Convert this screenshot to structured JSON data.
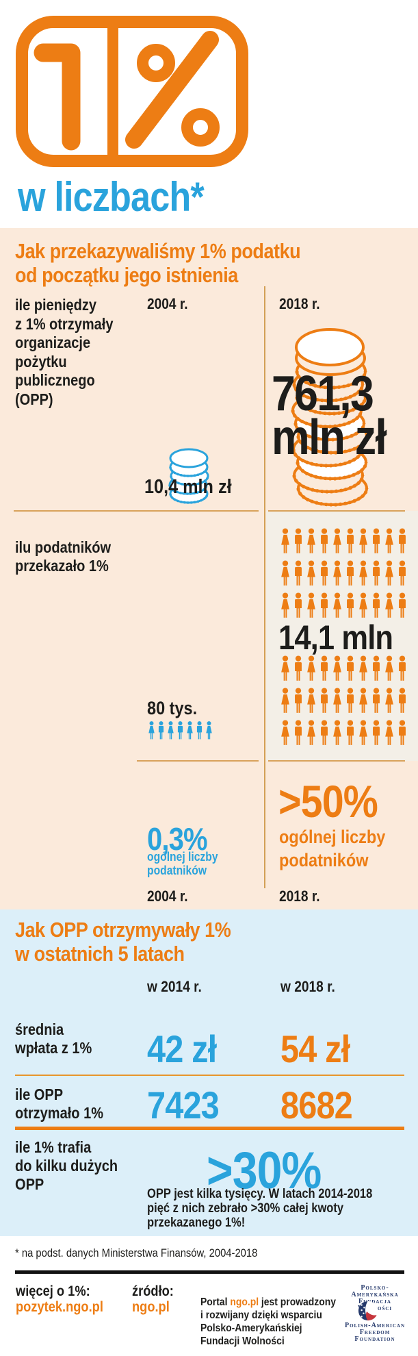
{
  "header": {
    "logo_one": "1",
    "logo_percent": "%",
    "title": "w liczbach*"
  },
  "section1": {
    "heading": "Jak przekazywaliśmy 1% podatku\nod początku jego istnienia",
    "col_2004": "2004 r.",
    "col_2018": "2018 r.",
    "money_label": "ile pieniędzy\nz 1% otrzymały\norganizacje\npożytku\npublicznego\n(OPP)",
    "money_2004": "10,4 mln zł",
    "money_2018": "761,3\nmln zł",
    "people_label": "ilu podatników\nprzekazało 1%",
    "people_2004": "80 tys.",
    "people_2018": "14,1 mln",
    "people_per_row": 10,
    "people_2004_count": 7,
    "share_2004": "0,3%",
    "share_caption_2004": "ogólnej liczby\npodatników",
    "share_year_2004": "2004 r.",
    "share_2018": ">50%",
    "share_caption_2018": "ogólnej liczby\npodatników",
    "share_year_2018": "2018 r."
  },
  "section2": {
    "heading": "Jak OPP otrzymywały 1%\nw ostatnich 5 latach",
    "col_2014": "w 2014 r.",
    "col_2018": "w 2018 r.",
    "avg_label": "średnia\nwpłata z 1%",
    "avg_2014": "42 zł",
    "avg_2018": "54 zł",
    "count_label": "ile OPP\notrzymało 1%",
    "count_2014": "7423",
    "count_2018": "8682",
    "big_label": "ile 1% trafia\ndo kilku dużych\nOPP",
    "big_value": ">30%",
    "note": "OPP jest kilka tysięcy. W latach 2014-2018\npięć z nich zebrało >30% całej kwoty\nprzekazanego 1%!"
  },
  "footer": {
    "footnote": "* na podst. danych Ministerstwa Finansów, 2004-2018",
    "more_label": "więcej o 1%:",
    "more_link": "pozytek.ngo.pl",
    "source_label": "źródło:",
    "source_link": "ngo.pl",
    "credit_pre": "Portal ",
    "credit_link": "ngo.pl",
    "credit_post": " jest prowadzony",
    "credit_rest": "i rozwijany dzięki wsparciu\nPolsko-Amerykańskiej\nFundacji Wolności",
    "pafw_pl": "Polsko-Amerykańska\nFundacja Wolności",
    "pafw_en": "Polish-American\nFreedom Foundation"
  },
  "colors": {
    "orange": "#ED7D14",
    "blue": "#2AA3DC",
    "cream_bg": "#FBEADB",
    "light_panel": "#F3EFE7",
    "lightblue_bg": "#DCEFF9",
    "navy": "#25396B",
    "flag_red": "#C6353C",
    "text_black": "#1d1d1b"
  },
  "chart_data": [
    {
      "type": "table",
      "title": "Jak przekazywaliśmy 1% podatku od początku jego istnienia",
      "columns": [
        "2004 r.",
        "2018 r."
      ],
      "rows": [
        {
          "label": "ile pieniędzy z 1% otrzymały organizacje pożytku publicznego (OPP)",
          "values": [
            "10,4 mln zł",
            "761,3 mln zł"
          ]
        },
        {
          "label": "ilu podatników przekazało 1%",
          "values": [
            "80 tys.",
            "14,1 mln"
          ]
        },
        {
          "label": "odsetek ogólnej liczby podatników",
          "values": [
            "0,3%",
            ">50%"
          ]
        }
      ],
      "pictograms": {
        "money": "coin-stacks",
        "people_2004_icons": 7,
        "people_2018_icons": 60
      }
    },
    {
      "type": "table",
      "title": "Jak OPP otrzymywały 1% w ostatnich 5 latach",
      "columns": [
        "w 2014 r.",
        "w 2018 r."
      ],
      "rows": [
        {
          "label": "średnia wpłata z 1%",
          "values": [
            "42 zł",
            "54 zł"
          ]
        },
        {
          "label": "ile OPP otrzymało 1%",
          "values": [
            "7423",
            "8682"
          ]
        },
        {
          "label": "ile 1% trafia do kilku dużych OPP",
          "values": [
            ">30%"
          ],
          "note": "OPP jest kilka tysięcy. W latach 2014-2018 pięć z nich zebrało >30% całej kwoty przekazanego 1%!"
        }
      ]
    }
  ]
}
